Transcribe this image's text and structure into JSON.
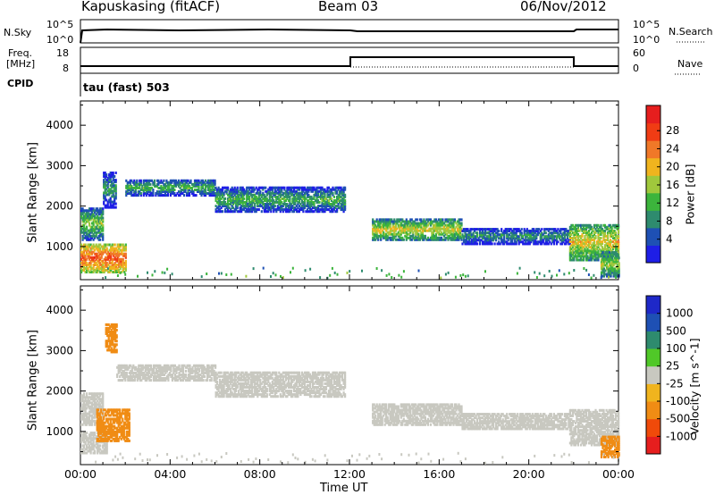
{
  "header": {
    "station": "Kapuskasing (fitACF)",
    "beam": "Beam 03",
    "date": "06/Nov/2012"
  },
  "panels": {
    "nsky": {
      "label": "N.Sky",
      "ticks": [
        "10^5",
        "10^0"
      ],
      "right_label": "N.Search",
      "right_ticks": [
        "10^5",
        "10^0"
      ]
    },
    "freq": {
      "label_1": "Freq.",
      "label_2": "[MHz]",
      "ticks": [
        "18",
        "8"
      ],
      "right_label": "Nave",
      "right_ticks": [
        "60",
        "0"
      ]
    },
    "cpid": {
      "label": "CPID",
      "text": "tau (fast) 503"
    }
  },
  "chart_data": [
    {
      "type": "heatmap",
      "title": "",
      "ylabel": "Slant Range [km]",
      "xlabel": "Time UT",
      "xlim": [
        "00:00",
        "24:00"
      ],
      "ylim": [
        180,
        4600
      ],
      "xticks": [
        "00:00",
        "04:00",
        "08:00",
        "12:00",
        "16:00",
        "20:00",
        "00:00"
      ],
      "yticks": [
        1000,
        2000,
        3000,
        4000
      ],
      "colorbar": {
        "label": "Power [dB]",
        "ticks": [
          "28",
          "24",
          "20",
          "16",
          "12",
          "8",
          "4"
        ],
        "range": [
          0,
          30
        ]
      },
      "bands": [
        {
          "t0": 0.0,
          "t1": 1.0,
          "r_lo": 1200,
          "r_hi": 2000,
          "value": 10
        },
        {
          "t0": 0.0,
          "t1": 2.0,
          "r_lo": 400,
          "r_hi": 1100,
          "value": 20
        },
        {
          "t0": 1.0,
          "t1": 1.6,
          "r_lo": 2000,
          "r_hi": 2900,
          "value": 6
        },
        {
          "t0": 2.0,
          "t1": 6.0,
          "r_lo": 2300,
          "r_hi": 2700,
          "value": 8
        },
        {
          "t0": 6.0,
          "t1": 11.8,
          "r_lo": 1900,
          "r_hi": 2500,
          "value": 8
        },
        {
          "t0": 13.0,
          "t1": 17.0,
          "r_lo": 1200,
          "r_hi": 1700,
          "value": 13
        },
        {
          "t0": 17.0,
          "t1": 21.8,
          "r_lo": 1100,
          "r_hi": 1500,
          "value": 6
        },
        {
          "t0": 21.8,
          "t1": 24.0,
          "r_lo": 700,
          "r_hi": 1600,
          "value": 14
        },
        {
          "t0": 23.2,
          "t1": 24.0,
          "r_lo": 300,
          "r_hi": 900,
          "value": 12
        }
      ]
    },
    {
      "type": "heatmap",
      "title": "",
      "ylabel": "Slant Range [km]",
      "xlabel": "Time UT",
      "xlim": [
        "00:00",
        "24:00"
      ],
      "ylim": [
        180,
        4600
      ],
      "xticks": [
        "00:00",
        "04:00",
        "08:00",
        "12:00",
        "16:00",
        "20:00",
        "00:00"
      ],
      "yticks": [
        1000,
        2000,
        3000,
        4000
      ],
      "colorbar": {
        "label": "Velocity [m s^-1]",
        "ticks": [
          "1000",
          "500",
          "100",
          "25",
          "-25",
          "-100",
          "-500",
          "-1000"
        ]
      },
      "bands": [
        {
          "t0": 0.0,
          "t1": 1.0,
          "r_lo": 1200,
          "r_hi": 2000,
          "value": 0
        },
        {
          "t0": 0.0,
          "t1": 1.2,
          "r_lo": 500,
          "r_hi": 1000,
          "value": 0
        },
        {
          "t0": 0.7,
          "t1": 2.2,
          "r_lo": 800,
          "r_hi": 1600,
          "value": -200
        },
        {
          "t0": 1.1,
          "t1": 1.6,
          "r_lo": 3000,
          "r_hi": 3700,
          "value": -300
        },
        {
          "t0": 1.6,
          "t1": 6.0,
          "r_lo": 2300,
          "r_hi": 2700,
          "value": 0
        },
        {
          "t0": 6.0,
          "t1": 11.8,
          "r_lo": 1900,
          "r_hi": 2500,
          "value": 0
        },
        {
          "t0": 13.0,
          "t1": 17.0,
          "r_lo": 1200,
          "r_hi": 1700,
          "value": 0
        },
        {
          "t0": 17.0,
          "t1": 21.8,
          "r_lo": 1100,
          "r_hi": 1500,
          "value": 0
        },
        {
          "t0": 21.8,
          "t1": 24.0,
          "r_lo": 700,
          "r_hi": 1600,
          "value": 0
        },
        {
          "t0": 23.2,
          "t1": 24.0,
          "r_lo": 400,
          "r_hi": 900,
          "value": -200
        }
      ]
    }
  ],
  "colors": {
    "power_scale": [
      "#1e1ee6",
      "#1e50b4",
      "#2e8b6e",
      "#3cb43c",
      "#a0c83c",
      "#f0b41e",
      "#f07828",
      "#f03c14",
      "#e61e1e"
    ],
    "velocity_scale": [
      "#e61e1e",
      "#f04a0a",
      "#f08c14",
      "#f0b41e",
      "#c8c8c0",
      "#50c828",
      "#2e8b6e",
      "#1e50b4",
      "#1e28c8"
    ]
  }
}
